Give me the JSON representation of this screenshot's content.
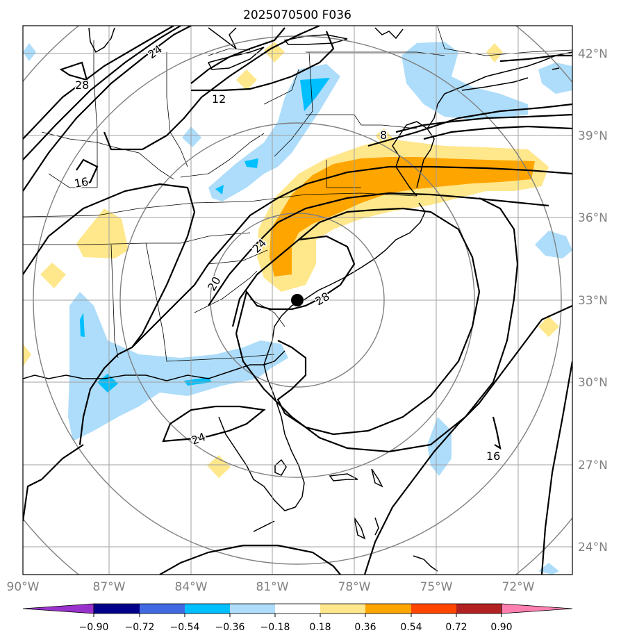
{
  "title": "2025070500 F036",
  "lon_ticks": [
    "90°W",
    "87°W",
    "84°W",
    "81°W",
    "78°W",
    "75°W",
    "72°W"
  ],
  "lat_ticks": [
    "42°N",
    "39°N",
    "36°N",
    "33°N",
    "30°N",
    "27°N",
    "24°N"
  ],
  "colorbar": {
    "ticks": [
      "−0.90",
      "−0.72",
      "−0.54",
      "−0.36",
      "−0.18",
      "0.18",
      "0.36",
      "0.54",
      "0.72",
      "0.90"
    ],
    "colors": [
      "#9932CC",
      "#00008B",
      "#4169E1",
      "#00BFFF",
      "#ADDDFA",
      "#FFFFFF",
      "#FFE78C",
      "#FFA500",
      "#FF4500",
      "#B22222",
      "#FF80B0"
    ]
  },
  "contour_labels": [
    "24",
    "28",
    "12",
    "8",
    "16",
    "24",
    "20",
    "28",
    "24",
    "16"
  ],
  "storm_center": {
    "lon": -80.1,
    "lat": 32.9
  },
  "colors": {
    "tick_label": "#808080",
    "grid": "#a0a0a0",
    "range_rings": "#808080",
    "contours": "#000000"
  }
}
